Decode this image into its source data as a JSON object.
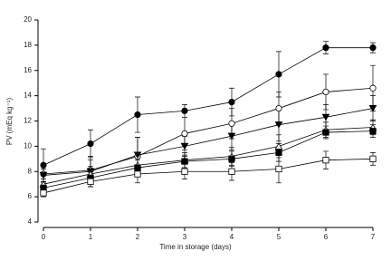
{
  "chart_data": {
    "type": "line",
    "xlabel": "Time in storage (days)",
    "ylabel": "PV (mEq kg⁻¹)",
    "x": [
      0,
      1,
      2,
      3,
      4,
      5,
      6,
      7
    ],
    "xlim": [
      0,
      7
    ],
    "xticks": [
      0,
      1,
      2,
      3,
      4,
      5,
      6,
      7
    ],
    "ylim": [
      4,
      20
    ],
    "yticks": [
      4,
      6,
      8,
      10,
      12,
      14,
      16,
      18,
      20
    ],
    "grid": false,
    "series": [
      {
        "color": "#000000",
        "marker": "circle",
        "filled": true,
        "values": [
          8.5,
          10.2,
          12.5,
          12.8,
          13.5,
          15.7,
          17.8,
          17.8
        ],
        "errors": [
          1.3,
          1.1,
          1.4,
          0.5,
          1.1,
          1.8,
          0.5,
          0.4
        ]
      },
      {
        "color": "#000000",
        "marker": "circle",
        "filled": false,
        "values": [
          7.8,
          8.1,
          9.2,
          11.0,
          11.8,
          13.0,
          14.3,
          14.6
        ],
        "errors": [
          0.6,
          0.8,
          1.5,
          1.3,
          1.2,
          1.3,
          1.4,
          1.8
        ]
      },
      {
        "color": "#000000",
        "marker": "triangle-down",
        "filled": true,
        "values": [
          7.7,
          8.0,
          9.3,
          10.0,
          10.8,
          11.7,
          12.3,
          13.0
        ],
        "errors": [
          0.5,
          1.2,
          1.4,
          0.8,
          1.1,
          1.3,
          1.0,
          1.0
        ]
      },
      {
        "color": "#000000",
        "marker": "triangle-up",
        "filled": false,
        "values": [
          7.0,
          7.8,
          8.5,
          8.9,
          9.2,
          10.0,
          11.3,
          11.5
        ],
        "errors": [
          0.4,
          0.6,
          0.7,
          0.6,
          0.7,
          0.9,
          0.6,
          0.6
        ]
      },
      {
        "color": "#000000",
        "marker": "square",
        "filled": true,
        "values": [
          6.7,
          7.5,
          8.3,
          8.8,
          9.0,
          9.5,
          11.1,
          11.2
        ],
        "errors": [
          0.4,
          0.5,
          0.6,
          0.5,
          0.6,
          0.7,
          0.5,
          0.5
        ]
      },
      {
        "color": "#000000",
        "marker": "square",
        "filled": false,
        "values": [
          6.3,
          7.2,
          7.8,
          8.0,
          8.0,
          8.2,
          8.9,
          9.0
        ],
        "errors": [
          0.3,
          0.4,
          0.7,
          0.6,
          0.7,
          1.1,
          0.7,
          0.5
        ]
      }
    ]
  }
}
